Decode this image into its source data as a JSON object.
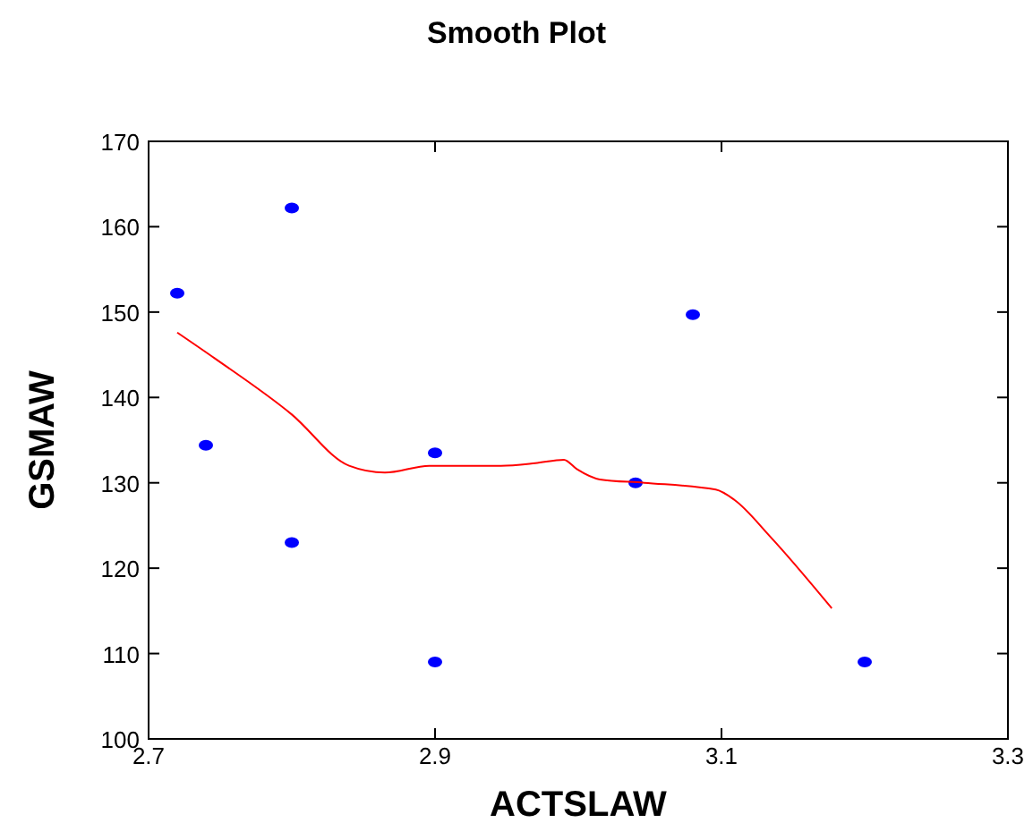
{
  "chart_data": {
    "type": "scatter",
    "title": "Smooth Plot",
    "xlabel": "ACTSLAW",
    "ylabel": "GSMAW",
    "xlim": [
      2.7,
      3.3
    ],
    "xticks": [
      2.7,
      2.9,
      3.1,
      3.3
    ],
    "ylim": [
      100,
      170
    ],
    "yticks": [
      100,
      110,
      120,
      130,
      140,
      150,
      160,
      170
    ],
    "grid": false,
    "series": [
      {
        "color": "#0000ff",
        "marker": "circle",
        "x": [
          2.72,
          2.74,
          2.8,
          2.8,
          2.9,
          2.9,
          3.04,
          3.08,
          3.2
        ],
        "values": [
          152.2,
          134.4,
          162.2,
          123,
          133.5,
          109,
          130,
          149.7,
          109
        ]
      },
      {
        "type": "line",
        "color": "#ff0000",
        "marker": "none",
        "x": [
          2.72,
          2.746,
          2.8,
          2.84,
          2.865,
          2.896,
          2.946,
          2.97,
          2.99,
          2.999,
          3.015,
          3.046,
          3.096,
          3.109,
          3.134,
          3.177
        ],
        "values": [
          147.6,
          144.6,
          138,
          132,
          131.2,
          132,
          132,
          132.3,
          132.7,
          131.6,
          130.4,
          130,
          129.2,
          128,
          123.7,
          115.3
        ]
      }
    ]
  }
}
